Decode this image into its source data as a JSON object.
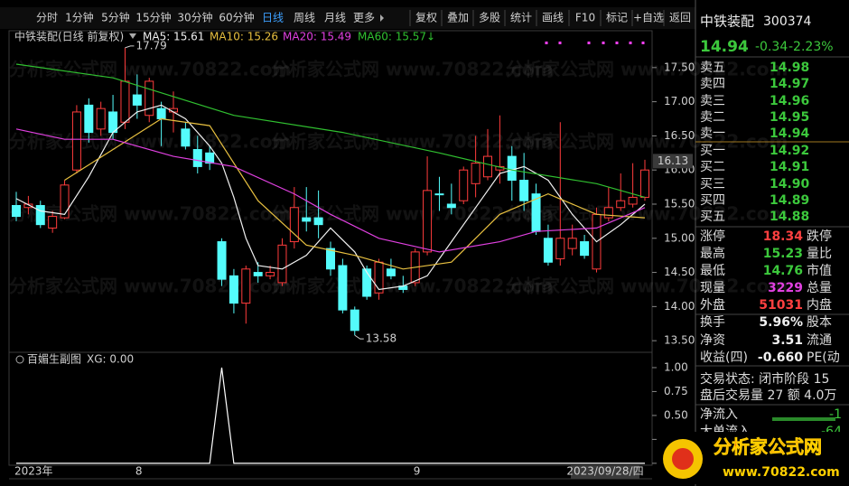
{
  "toolbar": {
    "periods": [
      "分时",
      "1分钟",
      "5分钟",
      "15分钟",
      "30分钟",
      "60分钟",
      "日线",
      "周线",
      "月线",
      "更多"
    ],
    "active_period": 6,
    "tools": [
      "复权",
      "叠加",
      "多股",
      "统计",
      "画线",
      "F10",
      "标记",
      "+自选",
      "返回"
    ]
  },
  "watermark": "分析家公式网 www.70822.com",
  "chart_data": [
    {
      "type": "candlestick",
      "title": "中铁装配(日线 前复权)",
      "categories": [
        "2023年",
        null,
        null,
        null,
        null,
        null,
        null,
        null,
        null,
        null,
        "8",
        null,
        null,
        null,
        null,
        null,
        null,
        null,
        null,
        null,
        null,
        null,
        null,
        null,
        null,
        null,
        null,
        null,
        null,
        null,
        null,
        null,
        null,
        "9",
        null,
        null,
        null,
        null,
        null,
        null,
        null,
        null,
        null,
        null,
        null,
        null,
        null,
        null,
        null,
        null,
        null,
        null,
        null
      ],
      "open": [
        15.48,
        15.45,
        15.48,
        15.15,
        15.3,
        16.0,
        16.95,
        16.6,
        16.85,
        16.7,
        17.1,
        16.8,
        16.9,
        16.85,
        16.6,
        16.3,
        16.25,
        14.95,
        14.45,
        14.05,
        14.5,
        14.45,
        14.35,
        14.95,
        15.3,
        15.3,
        14.85,
        14.6,
        13.95,
        14.55,
        14.2,
        14.55,
        14.3,
        14.35,
        14.8,
        15.65,
        15.5,
        15.55,
        15.8,
        15.9,
        16.0,
        16.2,
        15.85,
        15.65,
        15.0,
        14.7,
        14.85,
        14.95,
        14.55,
        15.3,
        15.45,
        15.5,
        15.6
      ],
      "high": [
        15.68,
        15.62,
        15.55,
        15.4,
        15.85,
        16.95,
        17.05,
        17.0,
        17.1,
        17.79,
        17.4,
        17.35,
        17.0,
        17.15,
        16.7,
        16.5,
        16.35,
        15.0,
        14.55,
        14.6,
        14.65,
        14.6,
        15.0,
        15.75,
        15.75,
        15.7,
        14.95,
        14.7,
        14.0,
        14.6,
        14.7,
        14.7,
        14.45,
        14.85,
        16.2,
        15.9,
        15.8,
        16.05,
        16.5,
        16.6,
        16.8,
        16.35,
        16.25,
        15.8,
        15.2,
        16.7,
        15.2,
        15.05,
        15.45,
        15.75,
        15.95,
        16.1,
        16.15
      ],
      "low": [
        15.25,
        15.35,
        15.15,
        15.08,
        15.28,
        15.95,
        16.4,
        16.5,
        16.45,
        16.6,
        16.75,
        16.7,
        16.35,
        16.55,
        16.3,
        15.95,
        16.0,
        14.3,
        13.9,
        13.75,
        14.35,
        14.4,
        14.3,
        14.85,
        15.1,
        15.0,
        14.45,
        13.9,
        13.58,
        14.1,
        14.1,
        14.4,
        14.2,
        14.3,
        14.75,
        15.4,
        15.35,
        15.5,
        15.6,
        15.85,
        15.8,
        15.55,
        15.4,
        15.05,
        14.6,
        14.6,
        14.75,
        14.7,
        14.5,
        15.25,
        15.4,
        15.45,
        15.55
      ],
      "close": [
        15.32,
        15.5,
        15.2,
        15.32,
        15.78,
        16.85,
        16.55,
        16.9,
        16.55,
        17.3,
        16.95,
        17.3,
        16.75,
        16.9,
        16.35,
        16.05,
        16.1,
        14.4,
        14.05,
        14.55,
        14.45,
        14.5,
        14.9,
        15.45,
        15.25,
        15.2,
        14.55,
        13.95,
        13.65,
        14.15,
        14.65,
        14.45,
        14.25,
        14.8,
        15.7,
        15.65,
        15.45,
        16.0,
        16.1,
        16.2,
        16.05,
        15.85,
        15.55,
        15.1,
        14.65,
        15.0,
        15.0,
        14.75,
        15.35,
        15.45,
        15.55,
        15.6,
        16.0
      ],
      "up_color": "#ff3c3c",
      "down_color": "#54fcfc",
      "series": [
        {
          "name": "MA5: 15.61",
          "color": "#f0f0f0",
          "x": [
            0,
            2,
            4,
            6,
            8,
            10,
            12,
            14,
            16,
            17,
            18,
            19,
            20,
            22,
            24,
            26,
            28,
            29,
            30,
            32,
            34,
            36,
            38,
            40,
            42,
            44,
            46,
            48,
            50,
            52
          ],
          "values": [
            15.58,
            15.4,
            15.35,
            15.9,
            16.55,
            16.85,
            16.95,
            16.75,
            16.35,
            16.1,
            15.6,
            15.0,
            14.6,
            14.55,
            14.75,
            15.15,
            14.8,
            14.5,
            14.25,
            14.3,
            14.45,
            14.95,
            15.45,
            15.95,
            16.05,
            15.85,
            15.35,
            14.95,
            15.2,
            15.5
          ]
        },
        {
          "name": "MA10: 15.26",
          "color": "#e8c040",
          "x": [
            4,
            8,
            12,
            16,
            20,
            24,
            28,
            32,
            36,
            40,
            44,
            48,
            52
          ],
          "values": [
            15.85,
            16.3,
            16.75,
            16.65,
            15.55,
            14.9,
            14.75,
            14.55,
            14.65,
            15.35,
            15.65,
            15.35,
            15.3
          ]
        },
        {
          "name": "MA20: 15.49",
          "color": "#e040e0",
          "x": [
            0,
            4,
            8,
            13,
            18,
            23,
            26,
            30,
            35,
            40,
            43,
            48,
            52
          ],
          "values": [
            16.6,
            16.45,
            16.45,
            16.2,
            16.05,
            15.65,
            15.35,
            15.0,
            14.8,
            14.95,
            15.1,
            15.15,
            15.45
          ]
        },
        {
          "name": "MA60: 15.57↓",
          "color": "#30c030",
          "x": [
            0,
            8,
            18,
            27,
            35,
            41,
            48,
            52
          ],
          "values": [
            17.55,
            17.35,
            16.8,
            16.55,
            16.25,
            16.0,
            15.8,
            15.6
          ]
        }
      ],
      "ylim": [
        13.33,
        18.04
      ],
      "yticks": [
        {
          "value": 13.5,
          "label": "13.50"
        },
        {
          "value": 14,
          "label": "14.00"
        },
        {
          "value": 14.5,
          "label": "14.50"
        },
        {
          "value": 15,
          "label": "15.00"
        },
        {
          "value": 15.5,
          "label": "15.50"
        },
        {
          "value": 16,
          "label": "16.00"
        },
        {
          "value": 16.5,
          "label": "16.50"
        },
        {
          "value": 17,
          "label": "17.00"
        },
        {
          "value": 17.5,
          "label": "17.50"
        }
      ],
      "cursor_price": 16.13,
      "cursor_date": "2023/09/28/四"
    },
    {
      "type": "line",
      "title": "百媚生副图",
      "series": [
        {
          "name": "XG: 0.00",
          "color": "#ffffff",
          "values": [
            0,
            0,
            0,
            0,
            0,
            0,
            0,
            0,
            0,
            0,
            0,
            0,
            0,
            0,
            0,
            0,
            0,
            1,
            0,
            0,
            0,
            0,
            0,
            0,
            0,
            0,
            0,
            0,
            0,
            0,
            0,
            0,
            0,
            0,
            0,
            0,
            0,
            0,
            0,
            0,
            0,
            0,
            0,
            0,
            0,
            0,
            0,
            0,
            0,
            0,
            0,
            0,
            0
          ]
        }
      ],
      "ylim": [
        -0.02,
        1.16
      ],
      "yticks": [
        {
          "value": 0,
          "label": "0.00"
        },
        {
          "value": 0.25,
          "label": "0.25"
        },
        {
          "value": 0.5,
          "label": "0.50"
        },
        {
          "value": 0.75,
          "label": "0.75"
        },
        {
          "value": 1,
          "label": "1.00"
        }
      ]
    }
  ],
  "quote": {
    "name": "中铁装配",
    "code": "300374",
    "price": "14.94",
    "change": "-0.34",
    "change_pct": "-2.23%",
    "asks": [
      {
        "label": "卖五",
        "price": "14.98"
      },
      {
        "label": "卖四",
        "price": "14.97"
      },
      {
        "label": "卖三",
        "price": "14.96"
      },
      {
        "label": "卖二",
        "price": "14.95"
      },
      {
        "label": "卖一",
        "price": "14.94"
      }
    ],
    "bids": [
      {
        "label": "买一",
        "price": "14.92"
      },
      {
        "label": "买二",
        "price": "14.91"
      },
      {
        "label": "买三",
        "price": "14.90"
      },
      {
        "label": "买四",
        "price": "14.89"
      },
      {
        "label": "买五",
        "price": "14.88"
      }
    ],
    "stats": [
      {
        "label": "涨停",
        "value": "18.34",
        "label2": "跌停",
        "color": "#ff4040"
      },
      {
        "label": "最高",
        "value": "15.23",
        "label2": "量比",
        "color": "#3cc83c"
      },
      {
        "label": "最低",
        "value": "14.76",
        "label2": "市值",
        "color": "#3cc83c"
      },
      {
        "label": "现量",
        "value": "3229",
        "label2": "总量",
        "color": "#e040e0"
      },
      {
        "label": "外盘",
        "value": "51031",
        "label2": "内盘",
        "color": "#ff4040"
      },
      {
        "label": "换手",
        "value": "5.96%",
        "label2": "股本",
        "color": "#f0f0f0"
      },
      {
        "label": "净资",
        "value": "3.51",
        "label2": "流通",
        "color": "#f0f0f0"
      },
      {
        "label": "收益(四)",
        "value": "-0.660",
        "label2": "PE(动",
        "color": "#f0f0f0"
      }
    ],
    "status": [
      "交易状态: 闭市阶段 15",
      "盘后交易量 27 额 4.0万"
    ],
    "flows": [
      {
        "label": "净流入",
        "value": "-1"
      },
      {
        "label": "大单流入",
        "value": "-64"
      }
    ],
    "logo": [
      "分析家公式网",
      "www.70822.com"
    ]
  }
}
